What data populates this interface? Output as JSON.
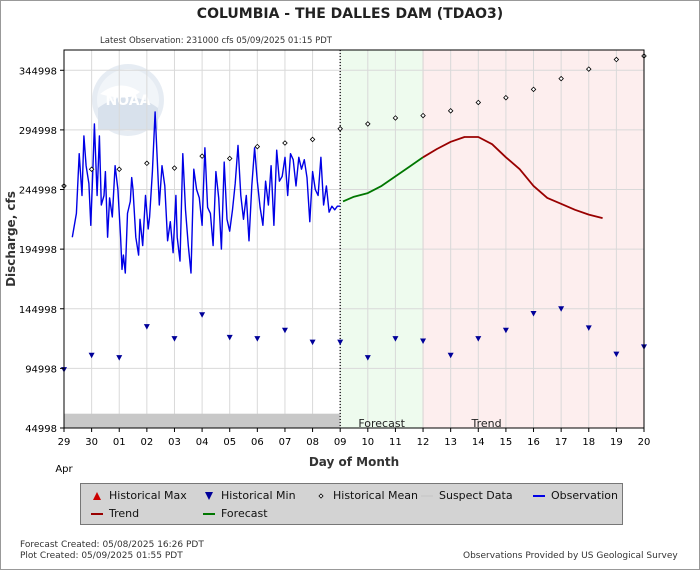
{
  "chart_data": {
    "type": "line",
    "title": "COLUMBIA - THE DALLES DAM  (TDAO3)",
    "subtitle": "Latest Observation: 231000 cfs 05/09/2025 01:15 PDT",
    "xlabel": "Day of Month",
    "ylabel": "Discharge, cfs",
    "x_tick_labels": [
      "29",
      "30",
      "01",
      "02",
      "03",
      "04",
      "05",
      "06",
      "07",
      "08",
      "09",
      "10",
      "11",
      "12",
      "13",
      "14",
      "15",
      "16",
      "17",
      "18",
      "19",
      "20"
    ],
    "x_month_label": "Apr",
    "y_ticks": [
      44998,
      94998,
      144998,
      194998,
      244998,
      294998,
      344998
    ],
    "ylim": [
      44998,
      362000
    ],
    "xlim": [
      0,
      21
    ],
    "grid": true,
    "regions": {
      "forecast": {
        "label": "Forecast",
        "x_start": 10,
        "x_end": 13,
        "color": "#eefbee"
      },
      "trend": {
        "label": "Trend",
        "x_start": 13,
        "x_end": 21,
        "color": "#fdeeee"
      },
      "suspect": {
        "y_from": 44998,
        "y_to": 57000,
        "x_start": 0,
        "x_end": 10
      }
    },
    "series": [
      {
        "name": "Observation",
        "color": "#0000e6",
        "x": [
          0.3,
          0.45,
          0.55,
          0.65,
          0.72,
          0.8,
          0.9,
          0.97,
          1.05,
          1.1,
          1.2,
          1.28,
          1.35,
          1.45,
          1.5,
          1.58,
          1.65,
          1.75,
          1.85,
          1.95,
          2.05,
          2.1,
          2.15,
          2.22,
          2.3,
          2.4,
          2.45,
          2.5,
          2.6,
          2.7,
          2.75,
          2.85,
          2.95,
          3.05,
          3.1,
          3.2,
          3.3,
          3.45,
          3.55,
          3.65,
          3.75,
          3.85,
          3.95,
          4.05,
          4.1,
          4.2,
          4.3,
          4.4,
          4.5,
          4.6,
          4.7,
          4.8,
          4.9,
          5.0,
          5.1,
          5.2,
          5.3,
          5.4,
          5.5,
          5.6,
          5.7,
          5.8,
          5.9,
          6.0,
          6.1,
          6.2,
          6.3,
          6.4,
          6.5,
          6.6,
          6.7,
          6.8,
          6.9,
          7.0,
          7.1,
          7.2,
          7.3,
          7.4,
          7.5,
          7.6,
          7.7,
          7.8,
          7.9,
          8.0,
          8.1,
          8.2,
          8.3,
          8.4,
          8.5,
          8.6,
          8.7,
          8.8,
          8.9,
          9.0,
          9.1,
          9.2,
          9.3,
          9.4,
          9.5,
          9.6,
          9.7,
          9.8,
          9.9,
          10.0
        ],
        "y": [
          205000,
          225000,
          275000,
          240000,
          290000,
          265000,
          250000,
          215000,
          265000,
          300000,
          240000,
          290000,
          232000,
          240000,
          260000,
          205000,
          238000,
          222000,
          265000,
          245000,
          205000,
          178000,
          190000,
          175000,
          225000,
          235000,
          255000,
          245000,
          205000,
          190000,
          220000,
          198000,
          240000,
          212000,
          222000,
          260000,
          310000,
          232000,
          265000,
          248000,
          202000,
          218000,
          192000,
          240000,
          205000,
          185000,
          275000,
          228000,
          198000,
          175000,
          262000,
          245000,
          238000,
          215000,
          280000,
          230000,
          225000,
          198000,
          260000,
          238000,
          195000,
          268000,
          220000,
          210000,
          228000,
          250000,
          282000,
          240000,
          220000,
          240000,
          202000,
          248000,
          280000,
          252000,
          230000,
          215000,
          252000,
          232000,
          265000,
          215000,
          278000,
          252000,
          256000,
          272000,
          240000,
          275000,
          270000,
          248000,
          272000,
          262000,
          270000,
          255000,
          218000,
          260000,
          245000,
          240000,
          272000,
          232000,
          248000,
          226000,
          231000,
          228000,
          231000,
          231000
        ]
      },
      {
        "name": "Forecast",
        "color": "#007700",
        "x": [
          10.1,
          10.5,
          11.0,
          11.5,
          12.0,
          12.5,
          13.0
        ],
        "y": [
          235000,
          239000,
          242000,
          248000,
          256000,
          264000,
          272000
        ]
      },
      {
        "name": "Trend",
        "color": "#990000",
        "x": [
          13.0,
          13.5,
          14.0,
          14.5,
          15.0,
          15.5,
          16.0,
          16.5,
          17.0,
          17.5,
          18.0,
          18.5,
          19.0,
          19.5
        ],
        "y": [
          272000,
          279000,
          285000,
          289000,
          289000,
          283000,
          272000,
          262000,
          248000,
          238000,
          233000,
          228000,
          224000,
          221000
        ]
      },
      {
        "name": "Historical Mean",
        "color": "#000000",
        "marker": "diamond",
        "x": [
          0,
          1,
          2,
          3,
          4,
          5,
          6,
          7,
          8,
          9,
          10,
          11,
          12,
          13,
          14,
          15,
          16,
          17,
          18,
          19,
          20,
          21
        ],
        "y": [
          248000,
          262000,
          262000,
          267000,
          263000,
          273000,
          271000,
          281000,
          284000,
          287000,
          296000,
          300000,
          305000,
          307000,
          311000,
          318000,
          322000,
          329000,
          338000,
          346000,
          354000,
          357000
        ]
      },
      {
        "name": "Historical Min",
        "color": "#000099",
        "marker": "triangle-down",
        "x": [
          0,
          1,
          2,
          3,
          4,
          5,
          6,
          7,
          8,
          9,
          10,
          11,
          12,
          13,
          14,
          15,
          16,
          17,
          18,
          19,
          20,
          21
        ],
        "y": [
          94000,
          106000,
          104000,
          130000,
          120000,
          140000,
          121000,
          120000,
          127000,
          117000,
          117000,
          104000,
          120000,
          118000,
          106000,
          120000,
          127000,
          141000,
          145000,
          129000,
          107000,
          113000
        ]
      }
    ],
    "legend": [
      {
        "label": "Historical Max",
        "symbol": "triangle-up",
        "color": "#cc0000"
      },
      {
        "label": "Historical Min",
        "symbol": "triangle-down",
        "color": "#000099"
      },
      {
        "label": "Historical Mean",
        "symbol": "diamond",
        "color": "#000000"
      },
      {
        "label": "Suspect Data",
        "symbol": "line",
        "color": "#cccccc"
      },
      {
        "label": "Observation",
        "symbol": "line",
        "color": "#0000e6"
      },
      {
        "label": "Trend",
        "symbol": "line",
        "color": "#990000"
      },
      {
        "label": "Forecast",
        "symbol": "line",
        "color": "#007700"
      }
    ],
    "legend_position": "bottom"
  },
  "watermark": "NOAA",
  "footer": {
    "forecast_created": "Forecast Created: 05/08/2025 16:26 PDT",
    "plot_created": "Plot Created: 05/09/2025 01:55 PDT",
    "provider": "Observations Provided by US Geological Survey"
  }
}
